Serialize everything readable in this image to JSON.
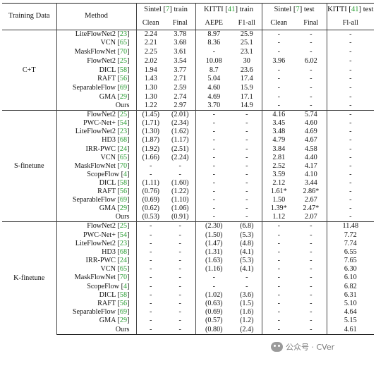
{
  "header": {
    "training_data": "Training Data",
    "method": "Method",
    "sintel_train": [
      "Sintel [",
      "7",
      "] train"
    ],
    "kitti_train": [
      "KITTI [",
      "41",
      "] train"
    ],
    "sintel_test": [
      "Sintel [",
      "7",
      "] test"
    ],
    "kitti_test": [
      "KITTI [",
      "41",
      "] test"
    ],
    "clean": "Clean",
    "final": "Final",
    "aepe": "AEPE",
    "f1all": "F1-all",
    "fl_all": "Fl-all"
  },
  "sections": [
    {
      "label": "C+T",
      "rows": [
        {
          "method": "LiteFlowNet2",
          "ref": "23",
          "vals": [
            "2.24",
            "3.78",
            "8.97",
            "25.9",
            "-",
            "-",
            "-"
          ]
        },
        {
          "method": "VCN",
          "ref": "65",
          "vals": [
            "2.21",
            "3.68",
            "8.36",
            "25.1",
            "-",
            "-",
            "-"
          ]
        },
        {
          "method": "MaskFlowNet",
          "ref": "70",
          "vals": [
            "2.25",
            "3.61",
            "-",
            "23.1",
            "-",
            "-",
            "-"
          ]
        },
        {
          "method": "FlowNet2",
          "ref": "25",
          "vals": [
            "2.02",
            "3.54",
            "10.08",
            "30",
            "3.96",
            "6.02",
            "-"
          ]
        },
        {
          "method": "DICL",
          "ref": "58",
          "vals": [
            "1.94",
            "3.77",
            "8.7",
            "23.6",
            "-",
            "-",
            "-"
          ]
        },
        {
          "method": "RAFT",
          "ref": "56",
          "vals": [
            "1.43",
            "2.71",
            "5.04",
            "17.4",
            "-",
            "-",
            "-"
          ]
        },
        {
          "method": "SeparableFlow",
          "ref": "69",
          "vals": [
            "1.30",
            "2.59",
            "4.60",
            "15.9",
            "-",
            "-",
            "-"
          ],
          "bold": [
            1
          ]
        },
        {
          "method": "GMA",
          "ref": "29",
          "vals": [
            "1.30",
            "2.74",
            "4.69",
            "17.1",
            "-",
            "-",
            "-"
          ]
        },
        {
          "method": "Ours",
          "ref": "",
          "vals": [
            "1.22",
            "2.97",
            "3.70",
            "14.9",
            "-",
            "-",
            "-"
          ],
          "bold": [
            0,
            2,
            3
          ]
        }
      ]
    },
    {
      "label": "S-finetune",
      "rows": [
        {
          "method": "FlowNet2",
          "ref": "25",
          "vals": [
            "(1.45)",
            "(2.01)",
            "-",
            "-",
            "4.16",
            "5.74",
            "-"
          ]
        },
        {
          "method": "PWC-Net+",
          "ref": "54",
          "vals": [
            "(1.71)",
            "(2.34)",
            "-",
            "-",
            "3.45",
            "4.60",
            "-"
          ]
        },
        {
          "method": "LiteFlowNet2",
          "ref": "23",
          "vals": [
            "(1.30)",
            "(1.62)",
            "-",
            "-",
            "3.48",
            "4.69",
            "-"
          ]
        },
        {
          "method": "HD3",
          "ref": "68",
          "vals": [
            "(1.87)",
            "(1.17)",
            "-",
            "-",
            "4.79",
            "4.67",
            "-"
          ]
        },
        {
          "method": "IRR-PWC",
          "ref": "24",
          "vals": [
            "(1.92)",
            "(2.51)",
            "-",
            "-",
            "3.84",
            "4.58",
            "-"
          ]
        },
        {
          "method": "VCN",
          "ref": "65",
          "vals": [
            "(1.66)",
            "(2.24)",
            "-",
            "-",
            "2.81",
            "4.40",
            "-"
          ]
        },
        {
          "method": "MaskFlowNet",
          "ref": "70",
          "vals": [
            "-",
            "-",
            "-",
            "-",
            "2.52",
            "4.17",
            "-"
          ]
        },
        {
          "method": "ScopeFlow",
          "ref": "4",
          "vals": [
            "-",
            "-",
            "-",
            "-",
            "3.59",
            "4.10",
            "-"
          ]
        },
        {
          "method": "DICL",
          "ref": "58",
          "vals": [
            "(1.11)",
            "(1.60)",
            "-",
            "-",
            "2.12",
            "3.44",
            "-"
          ]
        },
        {
          "method": "RAFT",
          "ref": "56",
          "vals": [
            "(0.76)",
            "(1.22)",
            "-",
            "-",
            "1.61*",
            "2.86*",
            "-"
          ]
        },
        {
          "method": "SeparableFlow",
          "ref": "69",
          "vals": [
            "(0.69)",
            "(1.10)",
            "-",
            "-",
            "1.50",
            "2.67",
            "-"
          ]
        },
        {
          "method": "GMA",
          "ref": "29",
          "vals": [
            "(0.62)",
            "(1.06)",
            "-",
            "-",
            "1.39*",
            "2.47*",
            "-"
          ]
        },
        {
          "method": "Ours",
          "ref": "",
          "vals": [
            "(0.53)",
            "(0.91)",
            "-",
            "-",
            "1.12",
            "2.07",
            "-"
          ],
          "bold": [
            0,
            1,
            4,
            5
          ]
        }
      ]
    },
    {
      "label": "K-finetune",
      "rows": [
        {
          "method": "FlowNet2",
          "ref": "25",
          "vals": [
            "-",
            "-",
            "(2.30)",
            "(6.8)",
            "-",
            "-",
            "11.48"
          ]
        },
        {
          "method": "PWC-Net+",
          "ref": "54",
          "vals": [
            "-",
            "-",
            "(1.50)",
            "(5.3)",
            "-",
            "-",
            "7.72"
          ]
        },
        {
          "method": "LiteFlowNet2",
          "ref": "23",
          "vals": [
            "-",
            "-",
            "(1.47)",
            "(4.8)",
            "-",
            "-",
            "7.74"
          ]
        },
        {
          "method": "HD3",
          "ref": "68",
          "vals": [
            "-",
            "-",
            "(1.31)",
            "(4.1)",
            "-",
            "-",
            "6.55"
          ]
        },
        {
          "method": "IRR-PWC",
          "ref": "24",
          "vals": [
            "-",
            "-",
            "(1.63)",
            "(5.3)",
            "-",
            "-",
            "7.65"
          ]
        },
        {
          "method": "VCN",
          "ref": "65",
          "vals": [
            "-",
            "-",
            "(1.16)",
            "(4.1)",
            "-",
            "-",
            "6.30"
          ]
        },
        {
          "method": "MaskFlowNet",
          "ref": "70",
          "vals": [
            "-",
            "-",
            "-",
            "-",
            "-",
            "-",
            "6.10"
          ]
        },
        {
          "method": "ScopeFlow",
          "ref": "4",
          "vals": [
            "-",
            "-",
            "-",
            "-",
            "-",
            "-",
            "6.82"
          ]
        },
        {
          "method": "DICL",
          "ref": "58",
          "vals": [
            "-",
            "-",
            "(1.02)",
            "(3.6)",
            "-",
            "-",
            "6.31"
          ]
        },
        {
          "method": "RAFT",
          "ref": "56",
          "vals": [
            "-",
            "-",
            "(0.63)",
            "(1.5)",
            "-",
            "-",
            "5.10"
          ]
        },
        {
          "method": "SeparableFlow",
          "ref": "69",
          "vals": [
            "-",
            "-",
            "(0.69)",
            "(1.6)",
            "-",
            "-",
            "4.64"
          ]
        },
        {
          "method": "GMA",
          "ref": "29",
          "vals": [
            "-",
            "-",
            "(0.57)",
            "(1.2)",
            "-",
            "-",
            "5.15"
          ],
          "bold": [
            2,
            3
          ]
        },
        {
          "method": "Ours",
          "ref": "",
          "vals": [
            "-",
            "-",
            "(0.80)",
            "(2.4)",
            "-",
            "-",
            "4.61"
          ],
          "bold": [
            6
          ]
        }
      ]
    }
  ],
  "watermark": "公众号 · CVer"
}
